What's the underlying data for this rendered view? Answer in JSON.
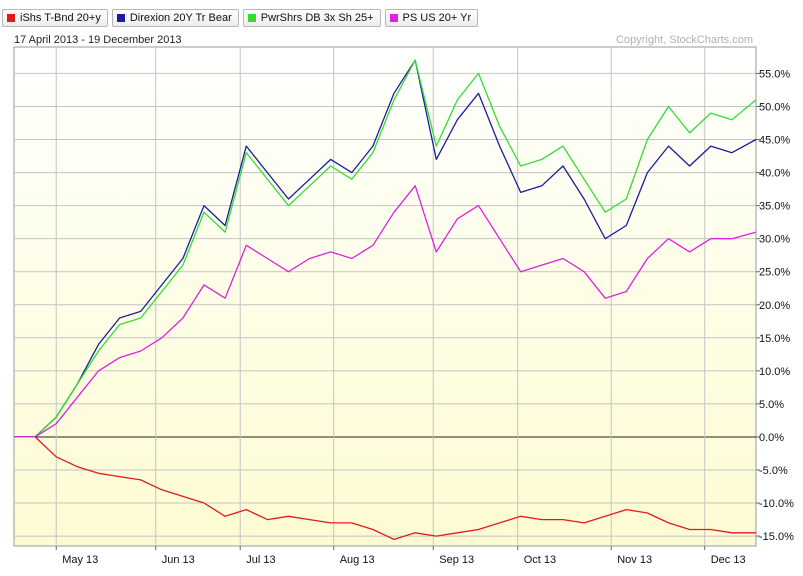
{
  "legend": [
    {
      "name": "iShs T-Bnd 20+y",
      "color": "#e31a1c"
    },
    {
      "name": "Direxion 20Y Tr Bear",
      "color": "#1c1ca0"
    },
    {
      "name": "PwrShrs DB 3x Sh 25+",
      "color": "#33dd33"
    },
    {
      "name": "PS US  20+ Yr",
      "color": "#e020e0"
    }
  ],
  "date_range": "17 April 2013 - 19 December 2013",
  "copyright": "Copyright, StockCharts.com",
  "chart_data": {
    "type": "line",
    "ylim": [
      -16.5,
      59
    ],
    "y_ticks": [
      55,
      50,
      45,
      40,
      35,
      30,
      25,
      20,
      15,
      10,
      5,
      0,
      -5,
      -10,
      -15
    ],
    "y_tick_labels": [
      "55.0%",
      "50.0%",
      "45.0%",
      "40.0%",
      "35.0%",
      "30.0%",
      "25.0%",
      "20.0%",
      "15.0%",
      "10.0%",
      "5.0%",
      "0.0%",
      "-5.0%",
      "-10.0%",
      "-15.0%"
    ],
    "x_tick_labels": [
      "May 13",
      "Jun 13",
      "Jul 13",
      "Aug 13",
      "Sep 13",
      "Oct 13",
      "Nov 13",
      "Dec 13"
    ],
    "x_ticks": [
      "2013-05-01",
      "2013-06-03",
      "2013-07-01",
      "2013-08-01",
      "2013-09-03",
      "2013-10-01",
      "2013-11-01",
      "2013-12-02"
    ],
    "x_range": [
      "2013-04-17",
      "2013-12-19"
    ],
    "grid": true,
    "legend_position": "top-left",
    "series": [
      {
        "name": "iShs T-Bnd 20+y",
        "color": "#e31a1c",
        "x": [
          "2013-04-17",
          "2013-04-24",
          "2013-05-01",
          "2013-05-08",
          "2013-05-15",
          "2013-05-22",
          "2013-05-29",
          "2013-06-05",
          "2013-06-12",
          "2013-06-19",
          "2013-06-26",
          "2013-07-03",
          "2013-07-10",
          "2013-07-17",
          "2013-07-24",
          "2013-07-31",
          "2013-08-07",
          "2013-08-14",
          "2013-08-21",
          "2013-08-28",
          "2013-09-04",
          "2013-09-11",
          "2013-09-18",
          "2013-09-25",
          "2013-10-02",
          "2013-10-09",
          "2013-10-16",
          "2013-10-23",
          "2013-10-30",
          "2013-11-06",
          "2013-11-13",
          "2013-11-20",
          "2013-11-27",
          "2013-12-04",
          "2013-12-11",
          "2013-12-19"
        ],
        "y": [
          0.0,
          0.0,
          -3.0,
          -4.5,
          -5.5,
          -6.0,
          -6.5,
          -8.0,
          -9.0,
          -10.0,
          -12.0,
          -11.0,
          -12.5,
          -12.0,
          -12.5,
          -13.0,
          -13.0,
          -14.0,
          -15.5,
          -14.5,
          -15.0,
          -14.5,
          -14.0,
          -13.0,
          -12.0,
          -12.5,
          -12.5,
          -13.0,
          -12.0,
          -11.0,
          -11.5,
          -13.0,
          -14.0,
          -14.0,
          -14.5,
          -14.5
        ]
      },
      {
        "name": "Direxion 20Y Tr Bear",
        "color": "#1c1ca0",
        "x": [
          "2013-04-17",
          "2013-04-24",
          "2013-05-01",
          "2013-05-08",
          "2013-05-15",
          "2013-05-22",
          "2013-05-29",
          "2013-06-05",
          "2013-06-12",
          "2013-06-19",
          "2013-06-26",
          "2013-07-03",
          "2013-07-10",
          "2013-07-17",
          "2013-07-24",
          "2013-07-31",
          "2013-08-07",
          "2013-08-14",
          "2013-08-21",
          "2013-08-28",
          "2013-09-04",
          "2013-09-11",
          "2013-09-18",
          "2013-09-25",
          "2013-10-02",
          "2013-10-09",
          "2013-10-16",
          "2013-10-23",
          "2013-10-30",
          "2013-11-06",
          "2013-11-13",
          "2013-11-20",
          "2013-11-27",
          "2013-12-04",
          "2013-12-11",
          "2013-12-19"
        ],
        "y": [
          0.0,
          0.0,
          3.0,
          8.0,
          14.0,
          18.0,
          19.0,
          23.0,
          27.0,
          35.0,
          32.0,
          44.0,
          40.0,
          36.0,
          39.0,
          42.0,
          40.0,
          44.0,
          52.0,
          57.0,
          42.0,
          48.0,
          52.0,
          44.0,
          37.0,
          38.0,
          41.0,
          36.0,
          30.0,
          32.0,
          40.0,
          44.0,
          41.0,
          44.0,
          43.0,
          45.0
        ]
      },
      {
        "name": "PwrShrs DB 3x Sh 25+",
        "color": "#33dd33",
        "x": [
          "2013-04-17",
          "2013-04-24",
          "2013-05-01",
          "2013-05-08",
          "2013-05-15",
          "2013-05-22",
          "2013-05-29",
          "2013-06-05",
          "2013-06-12",
          "2013-06-19",
          "2013-06-26",
          "2013-07-03",
          "2013-07-10",
          "2013-07-17",
          "2013-07-24",
          "2013-07-31",
          "2013-08-07",
          "2013-08-14",
          "2013-08-21",
          "2013-08-28",
          "2013-09-04",
          "2013-09-11",
          "2013-09-18",
          "2013-09-25",
          "2013-10-02",
          "2013-10-09",
          "2013-10-16",
          "2013-10-23",
          "2013-10-30",
          "2013-11-06",
          "2013-11-13",
          "2013-11-20",
          "2013-11-27",
          "2013-12-04",
          "2013-12-11",
          "2013-12-19"
        ],
        "y": [
          0.0,
          0.0,
          3.0,
          8.0,
          13.0,
          17.0,
          18.0,
          22.0,
          26.0,
          34.0,
          31.0,
          43.0,
          39.0,
          35.0,
          38.0,
          41.0,
          39.0,
          43.0,
          51.0,
          57.0,
          44.0,
          51.0,
          55.0,
          47.0,
          41.0,
          42.0,
          44.0,
          39.0,
          34.0,
          36.0,
          45.0,
          50.0,
          46.0,
          49.0,
          48.0,
          51.0
        ]
      },
      {
        "name": "PS US  20+ Yr",
        "color": "#e020e0",
        "x": [
          "2013-04-17",
          "2013-04-24",
          "2013-05-01",
          "2013-05-08",
          "2013-05-15",
          "2013-05-22",
          "2013-05-29",
          "2013-06-05",
          "2013-06-12",
          "2013-06-19",
          "2013-06-26",
          "2013-07-03",
          "2013-07-10",
          "2013-07-17",
          "2013-07-24",
          "2013-07-31",
          "2013-08-07",
          "2013-08-14",
          "2013-08-21",
          "2013-08-28",
          "2013-09-04",
          "2013-09-11",
          "2013-09-18",
          "2013-09-25",
          "2013-10-02",
          "2013-10-09",
          "2013-10-16",
          "2013-10-23",
          "2013-10-30",
          "2013-11-06",
          "2013-11-13",
          "2013-11-20",
          "2013-11-27",
          "2013-12-04",
          "2013-12-11",
          "2013-12-19"
        ],
        "y": [
          0.0,
          0.0,
          2.0,
          6.0,
          10.0,
          12.0,
          13.0,
          15.0,
          18.0,
          23.0,
          21.0,
          29.0,
          27.0,
          25.0,
          27.0,
          28.0,
          27.0,
          29.0,
          34.0,
          38.0,
          28.0,
          33.0,
          35.0,
          30.0,
          25.0,
          26.0,
          27.0,
          25.0,
          21.0,
          22.0,
          27.0,
          30.0,
          28.0,
          30.0,
          30.0,
          31.0
        ]
      }
    ]
  }
}
